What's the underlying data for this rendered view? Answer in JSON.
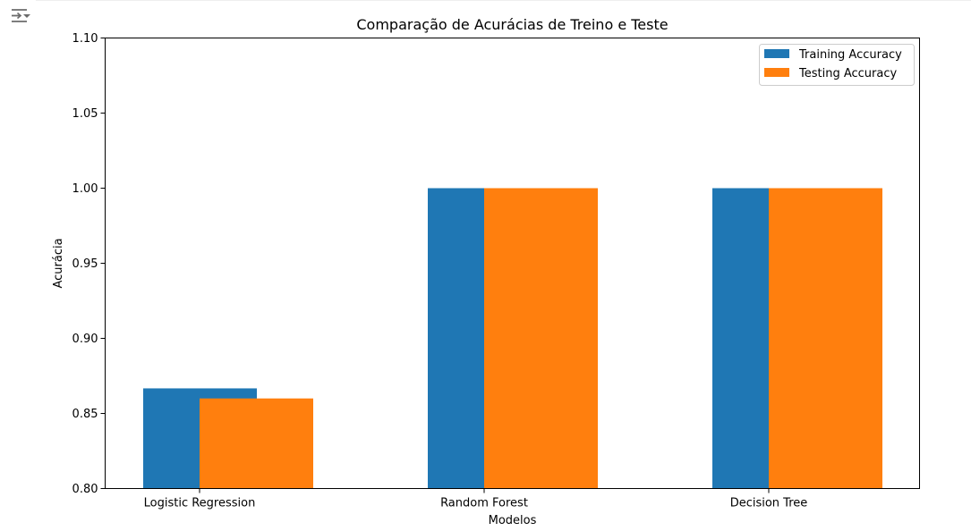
{
  "icons": {
    "output_toggle": "output-collapse-icon"
  },
  "chart_data": {
    "type": "bar",
    "title": "Comparação de Acurácias de Treino e Teste",
    "xlabel": "Modelos",
    "ylabel": "Acurácia",
    "categories": [
      "Logistic Regression",
      "Random Forest",
      "Decision Tree"
    ],
    "series": [
      {
        "name": "Training Accuracy",
        "color": "#1f77b4",
        "values": [
          0.8667,
          1.0,
          1.0
        ]
      },
      {
        "name": "Testing Accuracy",
        "color": "#ff7f0e",
        "values": [
          0.86,
          1.0,
          1.0
        ]
      }
    ],
    "ylim": [
      0.8,
      1.1
    ],
    "yticks": [
      "0.80",
      "0.85",
      "0.90",
      "0.95",
      "1.00",
      "1.05",
      "1.10"
    ],
    "grid": false,
    "legend_position": "upper right"
  }
}
